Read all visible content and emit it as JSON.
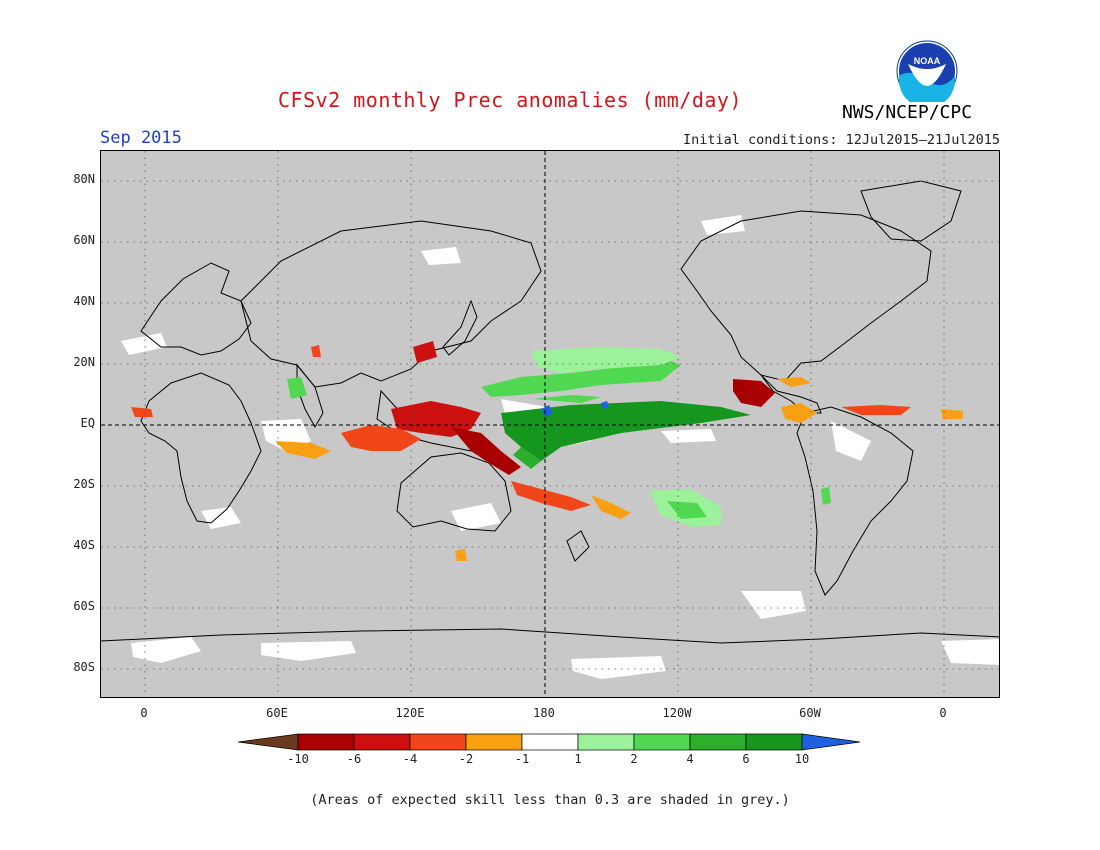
{
  "header": {
    "title": "CFSv2 monthly Prec anomalies (mm/day)",
    "month": "Sep 2015",
    "initial_conditions": "Initial conditions: 12Jul2015–21Jul2015",
    "agency": "NWS/NCEP/CPC",
    "logo_text": "NOAA"
  },
  "map": {
    "lat_labels": [
      "80N",
      "60N",
      "40N",
      "20N",
      "EQ",
      "20S",
      "40S",
      "60S",
      "80S"
    ],
    "lon_labels": [
      "0",
      "60E",
      "120E",
      "180",
      "120W",
      "60W",
      "0"
    ],
    "colors": {
      "grey_mask": "#c8c8c8",
      "coast": "#000000",
      "near_zero": "#ffffff"
    }
  },
  "colorbar": {
    "tick_labels": [
      "-10",
      "-6",
      "-4",
      "-2",
      "-1",
      "1",
      "2",
      "4",
      "6",
      "10"
    ],
    "colors": [
      "#6b3a1e",
      "#a80000",
      "#cc1010",
      "#f0461a",
      "#f8a012",
      "#ffffff",
      "#9cf29a",
      "#50d850",
      "#2cb02c",
      "#15961e",
      "#1f60e0"
    ]
  },
  "footnote": "(Areas of expected skill less than 0.3 are shaded in grey.)"
}
